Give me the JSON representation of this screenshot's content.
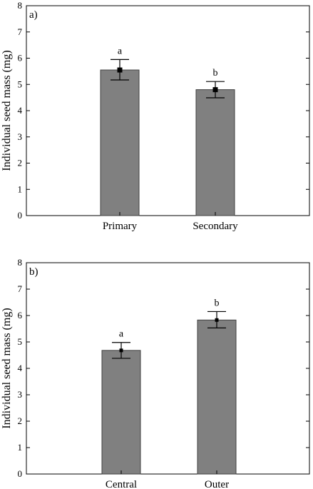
{
  "colors": {
    "bar_fill": "#808080",
    "bar_stroke": "#404040",
    "axis": "#000000"
  },
  "chart_data": [
    {
      "type": "bar",
      "panel_label": "a)",
      "ylabel": "Individual seed mass (mg)",
      "xlabel": "",
      "ylim": [
        0,
        8
      ],
      "yticks": [
        "0",
        "1",
        "2",
        "3",
        "4",
        "5",
        "6",
        "7",
        "8"
      ],
      "categories": [
        "Primary",
        "Secondary"
      ],
      "values": [
        5.55,
        4.8
      ],
      "error_low": [
        5.17,
        4.49
      ],
      "error_high": [
        5.95,
        5.11
      ],
      "significance": [
        "a",
        "b"
      ],
      "grid": false,
      "legend": "none"
    },
    {
      "type": "bar",
      "panel_label": "b)",
      "ylabel": "Individual seed mass (mg)",
      "xlabel": "",
      "ylim": [
        0,
        8
      ],
      "yticks": [
        "0",
        "1",
        "2",
        "3",
        "4",
        "5",
        "6",
        "7",
        "8"
      ],
      "categories": [
        "Central",
        "Outer"
      ],
      "values": [
        4.68,
        5.83
      ],
      "error_low": [
        4.38,
        5.53
      ],
      "error_high": [
        4.98,
        6.15
      ],
      "significance": [
        "a",
        "b"
      ],
      "grid": false,
      "legend": "none"
    }
  ]
}
